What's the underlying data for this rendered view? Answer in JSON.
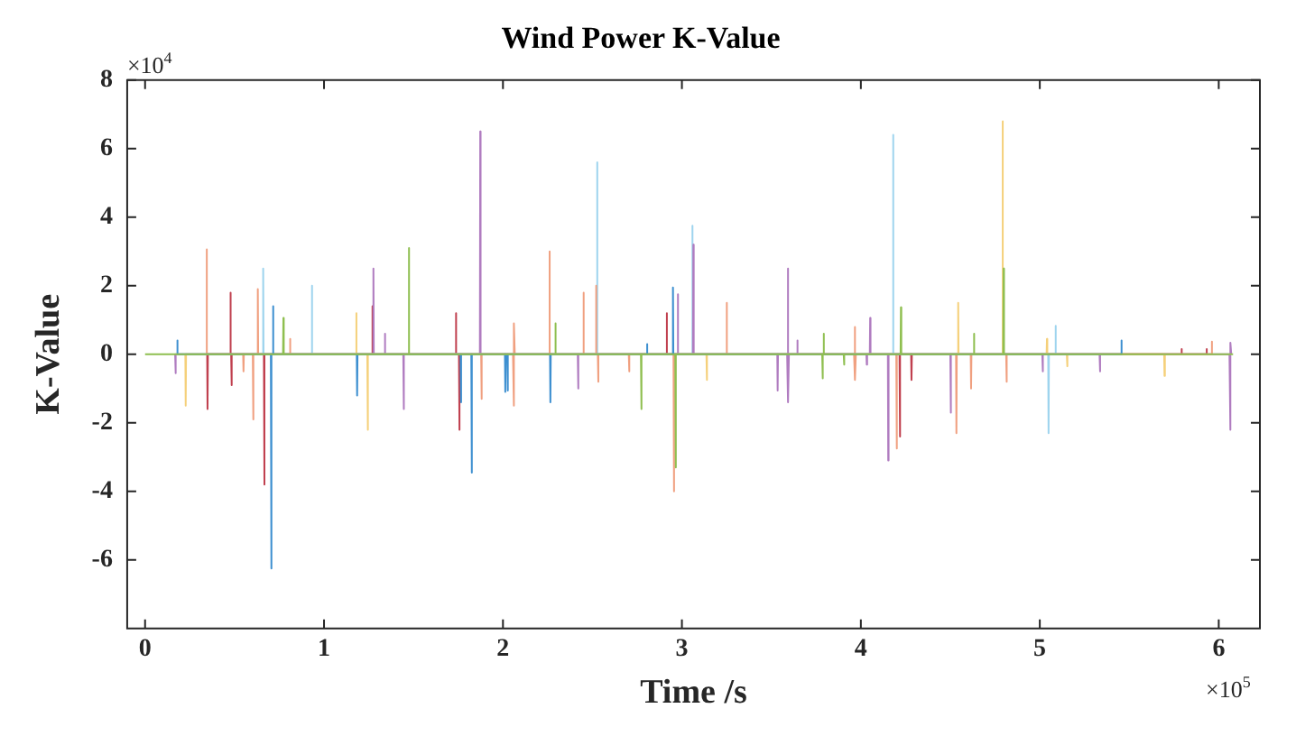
{
  "chart_data": {
    "type": "line",
    "title": "Wind Power K-Value",
    "xlabel": "Time /s",
    "ylabel": "K-Value",
    "annotations": [
      "×10$^{4}$",
      "×10$^{5}$"
    ],
    "xlim": [
      -0.1,
      6.23
    ],
    "xticks": [
      0,
      1,
      2,
      3,
      4,
      5,
      6
    ],
    "ylim": [
      -8,
      8
    ],
    "yticks": [
      -6,
      -4,
      -2,
      0,
      2,
      4,
      6,
      8
    ],
    "grid": false,
    "legend": false,
    "marker": "none",
    "line_style": "solid",
    "series": [
      {
        "color": "#8fbf50",
        "x": [
          0,
          0.771,
          0.773,
          0.775,
          1.472,
          1.474,
          1.476,
          2.291,
          2.293,
          2.295,
          2.771,
          2.773,
          2.775,
          2.963,
          2.965,
          2.967,
          3.784,
          3.786,
          3.788,
          3.79,
          3.792,
          3.794,
          3.904,
          3.906,
          3.908,
          4.222,
          4.224,
          4.226,
          4.63,
          4.632,
          4.634,
          4.796,
          4.798,
          4.8,
          6.08
        ],
        "values": [
          0,
          0,
          1.06,
          0,
          0,
          3.1,
          0,
          0,
          0.9,
          0,
          0,
          -1.6,
          0,
          0,
          -3.3,
          0,
          0,
          -0.7,
          0,
          0,
          0.6,
          0,
          0,
          -0.3,
          0,
          0,
          1.37,
          0,
          0,
          0.6,
          0,
          0,
          2.5,
          0,
          0
        ]
      },
      {
        "color": "#3d8fd0",
        "x": [
          0.178,
          0.18,
          0.182,
          0.703,
          0.705,
          0.707,
          0.713,
          0.715,
          0.717,
          1.183,
          1.185,
          1.187,
          1.763,
          1.765,
          1.767,
          1.823,
          1.825,
          1.827,
          2.011,
          2.013,
          2.015,
          2.024,
          2.026,
          2.028,
          2.263,
          2.265,
          2.267,
          2.803,
          2.805,
          2.807,
          2.948,
          2.95,
          2.952,
          5.454,
          5.456,
          5.458
        ],
        "values": [
          0,
          0.4,
          0,
          0,
          -6.25,
          0,
          0,
          1.4,
          0,
          0,
          -1.2,
          0,
          0,
          -1.4,
          0,
          0,
          -3.45,
          0,
          0,
          -1.1,
          0,
          0,
          -1.06,
          0,
          0,
          -1.4,
          0,
          0,
          0.3,
          0,
          0,
          1.95,
          0,
          0,
          0.4,
          0
        ]
      },
      {
        "color": "#f0a080",
        "x": [
          0.342,
          0.344,
          0.346,
          0.548,
          0.55,
          0.552,
          0.602,
          0.604,
          0.606,
          0.628,
          0.63,
          0.632,
          0.808,
          0.81,
          0.812,
          1.878,
          1.88,
          1.882,
          2.056,
          2.058,
          2.06,
          2.062,
          2.064,
          2.066,
          2.258,
          2.26,
          2.262,
          2.448,
          2.45,
          2.452,
          2.518,
          2.52,
          2.522,
          2.53,
          2.532,
          2.534,
          2.703,
          2.705,
          2.707,
          2.953,
          2.955,
          2.957,
          3.248,
          3.25,
          3.252,
          3.962,
          3.964,
          3.966,
          3.968,
          3.97,
          3.972,
          4.198,
          4.2,
          4.202,
          4.532,
          4.534,
          4.536,
          4.614,
          4.616,
          4.618,
          4.812,
          4.814,
          4.816,
          5.959,
          5.961,
          5.963
        ],
        "values": [
          0,
          3.06,
          0,
          0,
          -0.5,
          0,
          0,
          -1.9,
          0,
          0,
          1.9,
          0,
          0,
          0.45,
          0,
          0,
          -1.3,
          0,
          0,
          -1.5,
          0,
          0,
          0.9,
          0,
          0,
          3.0,
          0,
          0,
          1.8,
          0,
          0,
          2.0,
          0,
          0,
          -0.8,
          0,
          0,
          -0.5,
          0,
          0,
          -4.0,
          0,
          0,
          1.5,
          0,
          0,
          0.8,
          0,
          0,
          -0.75,
          0,
          0,
          -2.75,
          0,
          0,
          -2.3,
          0,
          0,
          -1.0,
          0,
          0,
          -0.8,
          0,
          0,
          0.37,
          0
        ]
      },
      {
        "color": "#f5d07a",
        "x": [
          0.225,
          0.227,
          0.229,
          1.178,
          1.18,
          1.182,
          1.242,
          1.244,
          1.246,
          3.137,
          3.139,
          3.141,
          4.542,
          4.544,
          4.546,
          4.79,
          4.792,
          4.794,
          5.038,
          5.04,
          5.042,
          5.151,
          5.153,
          5.155,
          5.695,
          5.697,
          5.699
        ],
        "values": [
          0,
          -1.5,
          0,
          0,
          1.2,
          0,
          0,
          -2.2,
          0,
          0,
          -0.75,
          0,
          0,
          1.5,
          0,
          0,
          6.8,
          0,
          0,
          0.45,
          0,
          0,
          -0.35,
          0,
          0,
          -0.63,
          0
        ]
      },
      {
        "color": "#b07cc0",
        "x": [
          0.168,
          0.17,
          0.172,
          1.274,
          1.276,
          1.278,
          1.338,
          1.34,
          1.342,
          1.443,
          1.445,
          1.447,
          1.871,
          1.873,
          1.875,
          2.418,
          2.42,
          2.422,
          2.975,
          2.977,
          2.979,
          3.062,
          3.064,
          3.066,
          3.533,
          3.535,
          3.537,
          3.588,
          3.59,
          3.592,
          3.594,
          3.596,
          3.598,
          3.643,
          3.645,
          3.647,
          4.031,
          4.033,
          4.035,
          4.05,
          4.052,
          4.054,
          4.151,
          4.153,
          4.155,
          4.5,
          4.502,
          4.504,
          5.014,
          5.016,
          5.018,
          5.334,
          5.336,
          5.338,
          6.06,
          6.062,
          6.064,
          6.066,
          6.068,
          6.07
        ],
        "values": [
          0,
          -0.55,
          0,
          0,
          2.5,
          0,
          0,
          0.6,
          0,
          0,
          -1.6,
          0,
          0,
          6.5,
          0,
          0,
          -1.0,
          0,
          0,
          1.75,
          0,
          0,
          3.2,
          0,
          0,
          -1.06,
          0,
          0,
          2.5,
          0,
          0,
          -1.4,
          0,
          0,
          0.4,
          0,
          0,
          -0.3,
          0,
          0,
          1.06,
          0,
          0,
          -3.1,
          0,
          0,
          -1.7,
          0,
          0,
          -0.5,
          0,
          0,
          -0.5,
          0,
          0,
          -2.2,
          0,
          0,
          0.34,
          0
        ]
      },
      {
        "color": "#9ed4ee",
        "x": [
          0.658,
          0.66,
          0.662,
          0.93,
          0.932,
          0.934,
          2.524,
          2.526,
          2.528,
          3.056,
          3.058,
          3.06,
          4.178,
          4.18,
          4.182,
          5.047,
          5.049,
          5.051,
          5.086,
          5.088,
          5.09
        ],
        "values": [
          0,
          2.5,
          0,
          0,
          2.0,
          0,
          0,
          5.6,
          0,
          0,
          3.75,
          0,
          0,
          6.4,
          0,
          0,
          -2.3,
          0,
          0,
          0.83,
          0
        ]
      },
      {
        "color": "#c0404f",
        "x": [
          0.347,
          0.349,
          0.351,
          0.475,
          0.477,
          0.479,
          0.481,
          0.483,
          0.485,
          0.664,
          0.666,
          0.668,
          1.268,
          1.27,
          1.272,
          1.735,
          1.737,
          1.739,
          1.754,
          1.756,
          1.758,
          2.913,
          2.915,
          2.917,
          4.216,
          4.218,
          4.22,
          4.281,
          4.283,
          4.285,
          5.79,
          5.792,
          5.794,
          5.93,
          5.932,
          5.934
        ],
        "values": [
          0,
          -1.6,
          0,
          0,
          1.8,
          0,
          0,
          -0.9,
          0,
          0,
          -3.8,
          0,
          0,
          1.4,
          0,
          0,
          1.2,
          0,
          0,
          -2.2,
          0,
          0,
          1.2,
          0,
          0,
          -2.4,
          0,
          0,
          -0.75,
          0,
          0,
          0.15,
          0,
          0,
          0.15,
          0
        ]
      }
    ]
  }
}
